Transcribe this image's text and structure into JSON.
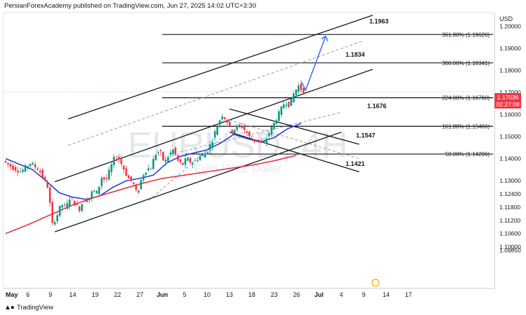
{
  "header": {
    "publisher_line": "PersianForexAcademy published on TradingView.com, Jun 27, 2025 14:02 UTC+3:30"
  },
  "currency_label": "USD",
  "price_badge": {
    "price": "1.17036",
    "countdown": "02:27:08",
    "color": "#f23645"
  },
  "watermark": {
    "symbol": "EURUSD, 4H",
    "subtitle": "Euro / U.S. Dollar"
  },
  "footer": {
    "logo_text": "TradingView"
  },
  "colors": {
    "candle_up": "#089981",
    "candle_down": "#f23645",
    "ma_fast": "#2a3fdc",
    "ma_slow": "#e8323f",
    "projection": "#2962ff"
  },
  "chart_data": {
    "type": "candlestick",
    "symbol": "EURUSD",
    "timeframe": "4H",
    "y_range": [
      1.085,
      1.2075
    ],
    "y_ticks": [
      "1.20000",
      "1.19000",
      "1.18000",
      "1.17000",
      "1.16000",
      "1.15000",
      "1.14000",
      "1.13000",
      "1.12400",
      "1.11800",
      "1.11200",
      "1.10600",
      "1.10000",
      "1.09850"
    ],
    "y_tick_values": [
      1.2,
      1.19,
      1.18,
      1.17,
      1.16,
      1.15,
      1.14,
      1.13,
      1.124,
      1.118,
      1.112,
      1.106,
      1.1,
      1.0985
    ],
    "x_ticks": [
      "May",
      "6",
      "9",
      "14",
      "19",
      "22",
      "27",
      "Jun",
      "5",
      "10",
      "13",
      "18",
      "23",
      "26",
      "Jul",
      "4",
      "9",
      "14",
      "17"
    ],
    "x_tick_days": [
      0,
      5,
      10,
      15,
      20,
      25,
      30,
      35,
      40,
      45,
      50,
      55,
      60,
      65,
      70,
      75,
      80,
      85,
      90
    ],
    "last_price": 1.17036,
    "fib_levels": [
      {
        "label": "361.80% (1.19626)",
        "value": 1.19626,
        "annotation": "1.1963"
      },
      {
        "label": "300.00% (1.18341)",
        "value": 1.18341,
        "annotation": "1.1834"
      },
      {
        "label": "224.00% (1.16760)",
        "value": 1.1676,
        "annotation": "1.1676"
      },
      {
        "label": "161.80% (1.15466)",
        "value": 1.15466,
        "annotation": "1.1547"
      },
      {
        "label": "50.00% (1.14206)",
        "value": 1.14206,
        "annotation": "1.1421"
      }
    ],
    "channel_lines": [
      {
        "style": "solid",
        "from": [
          14,
          1.158
        ],
        "to": [
          82,
          1.205
        ]
      },
      {
        "style": "solid",
        "from": [
          11,
          1.1295
        ],
        "to": [
          82,
          1.1805
        ]
      },
      {
        "style": "solid",
        "from": [
          11,
          1.1068
        ],
        "to": [
          75,
          1.152
        ]
      },
      {
        "style": "dashed",
        "from": [
          14,
          1.146
        ],
        "to": [
          80,
          1.1935
        ]
      },
      {
        "style": "dashed",
        "from": [
          39,
          1.143
        ],
        "to": [
          75,
          1.161
        ]
      },
      {
        "style": "solid",
        "from": [
          50,
          1.1625
        ],
        "to": [
          79,
          1.1465
        ]
      },
      {
        "style": "solid",
        "from": [
          50,
          1.152
        ],
        "to": [
          79,
          1.134
        ]
      },
      {
        "style": "dashed",
        "from": [
          50,
          1.1575
        ],
        "to": [
          79,
          1.14
        ]
      },
      {
        "style": "dashed",
        "from": [
          32,
          1.121
        ],
        "to": [
          48,
          1.149
        ]
      }
    ],
    "projection_arrow": {
      "from": [
        67,
        1.171
      ],
      "to": [
        71.5,
        1.1955
      ]
    },
    "series": [
      {
        "name": "",
        "kind": "ma_fast",
        "x": [
          0,
          3,
          6,
          9,
          12,
          15,
          18,
          21,
          24,
          27,
          30,
          33,
          36,
          39,
          42,
          45,
          48,
          51,
          54,
          57,
          60,
          63,
          66
        ],
        "y": [
          1.14,
          1.1375,
          1.135,
          1.13,
          1.1245,
          1.1225,
          1.1215,
          1.123,
          1.127,
          1.13,
          1.131,
          1.1325,
          1.138,
          1.141,
          1.1425,
          1.144,
          1.147,
          1.151,
          1.149,
          1.1475,
          1.1495,
          1.1535,
          1.156
        ]
      },
      {
        "name": "",
        "kind": "ma_slow",
        "x": [
          0,
          5,
          10,
          15,
          20,
          25,
          30,
          35,
          40,
          45,
          50,
          55,
          60,
          65
        ],
        "y": [
          1.106,
          1.11,
          1.1145,
          1.119,
          1.1225,
          1.1255,
          1.1285,
          1.131,
          1.1325,
          1.134,
          1.1355,
          1.137,
          1.139,
          1.1415
        ]
      },
      {
        "name": "",
        "kind": "price_path",
        "x": [
          0,
          2,
          4,
          6,
          8,
          10,
          11,
          12,
          13,
          14,
          15,
          16,
          17,
          18,
          19,
          20,
          21,
          22,
          23,
          24,
          25,
          26,
          27,
          28,
          29,
          30,
          31,
          32,
          33,
          34,
          35,
          36,
          37,
          38,
          39,
          40,
          41,
          42,
          43,
          44,
          45,
          46,
          47,
          48,
          49,
          50,
          51,
          52,
          53,
          54,
          55,
          56,
          57,
          58,
          59,
          60,
          61,
          62,
          63,
          64,
          65,
          66,
          67
        ],
        "y": [
          1.139,
          1.136,
          1.134,
          1.138,
          1.135,
          1.127,
          1.11,
          1.114,
          1.1195,
          1.1175,
          1.123,
          1.1195,
          1.117,
          1.1215,
          1.121,
          1.1255,
          1.1245,
          1.1315,
          1.13,
          1.136,
          1.141,
          1.1395,
          1.135,
          1.131,
          1.129,
          1.123,
          1.132,
          1.135,
          1.136,
          1.142,
          1.1435,
          1.138,
          1.1415,
          1.144,
          1.139,
          1.137,
          1.14,
          1.138,
          1.139,
          1.141,
          1.142,
          1.145,
          1.15,
          1.156,
          1.16,
          1.157,
          1.152,
          1.154,
          1.155,
          1.153,
          1.15,
          1.148,
          1.149,
          1.146,
          1.15,
          1.154,
          1.158,
          1.162,
          1.166,
          1.164,
          1.17,
          1.173,
          1.1704
        ]
      }
    ]
  }
}
